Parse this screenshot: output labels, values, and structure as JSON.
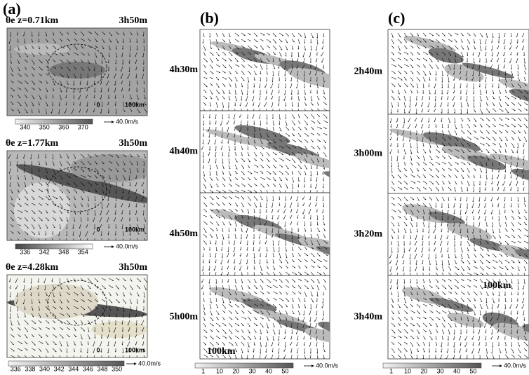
{
  "panel_a": {
    "label": "(a)",
    "subpanels": [
      {
        "title": "θe z=0.71km",
        "time": "3h50m",
        "scale_zero": "0",
        "scale_label": "100km",
        "colorbar_labels": [
          "340",
          "350",
          "360",
          "370"
        ],
        "vector_label": "40.0m/s"
      },
      {
        "title": "θe z=1.77km",
        "time": "3h50m",
        "scale_zero": "0",
        "scale_label": "100km",
        "colorbar_labels": [
          "336",
          "342",
          "348",
          "354"
        ],
        "vector_label": "40.0m/s"
      },
      {
        "title": "θe z=4.28km",
        "time": "3h50m",
        "scale_zero": "0",
        "scale_label": "100km",
        "colorbar_labels": [
          "336",
          "338",
          "340",
          "342",
          "344",
          "346",
          "348",
          "350"
        ],
        "vector_label": "40.0m/s"
      }
    ]
  },
  "panel_b": {
    "label": "(b)",
    "times": [
      "4h30m",
      "4h40m",
      "4h50m",
      "5h00m"
    ],
    "scale_label": "100km",
    "colorbar_labels": [
      "1",
      "10",
      "20",
      "30",
      "40",
      "50"
    ],
    "vector_label": "40.0m/s"
  },
  "panel_c": {
    "label": "(c)",
    "times": [
      "2h40m",
      "3h00m",
      "3h20m",
      "3h40m"
    ],
    "scale_label": "100km",
    "colorbar_labels": [
      "1",
      "10",
      "20",
      "30",
      "40",
      "50"
    ],
    "vector_label": "40.0m/s"
  }
}
